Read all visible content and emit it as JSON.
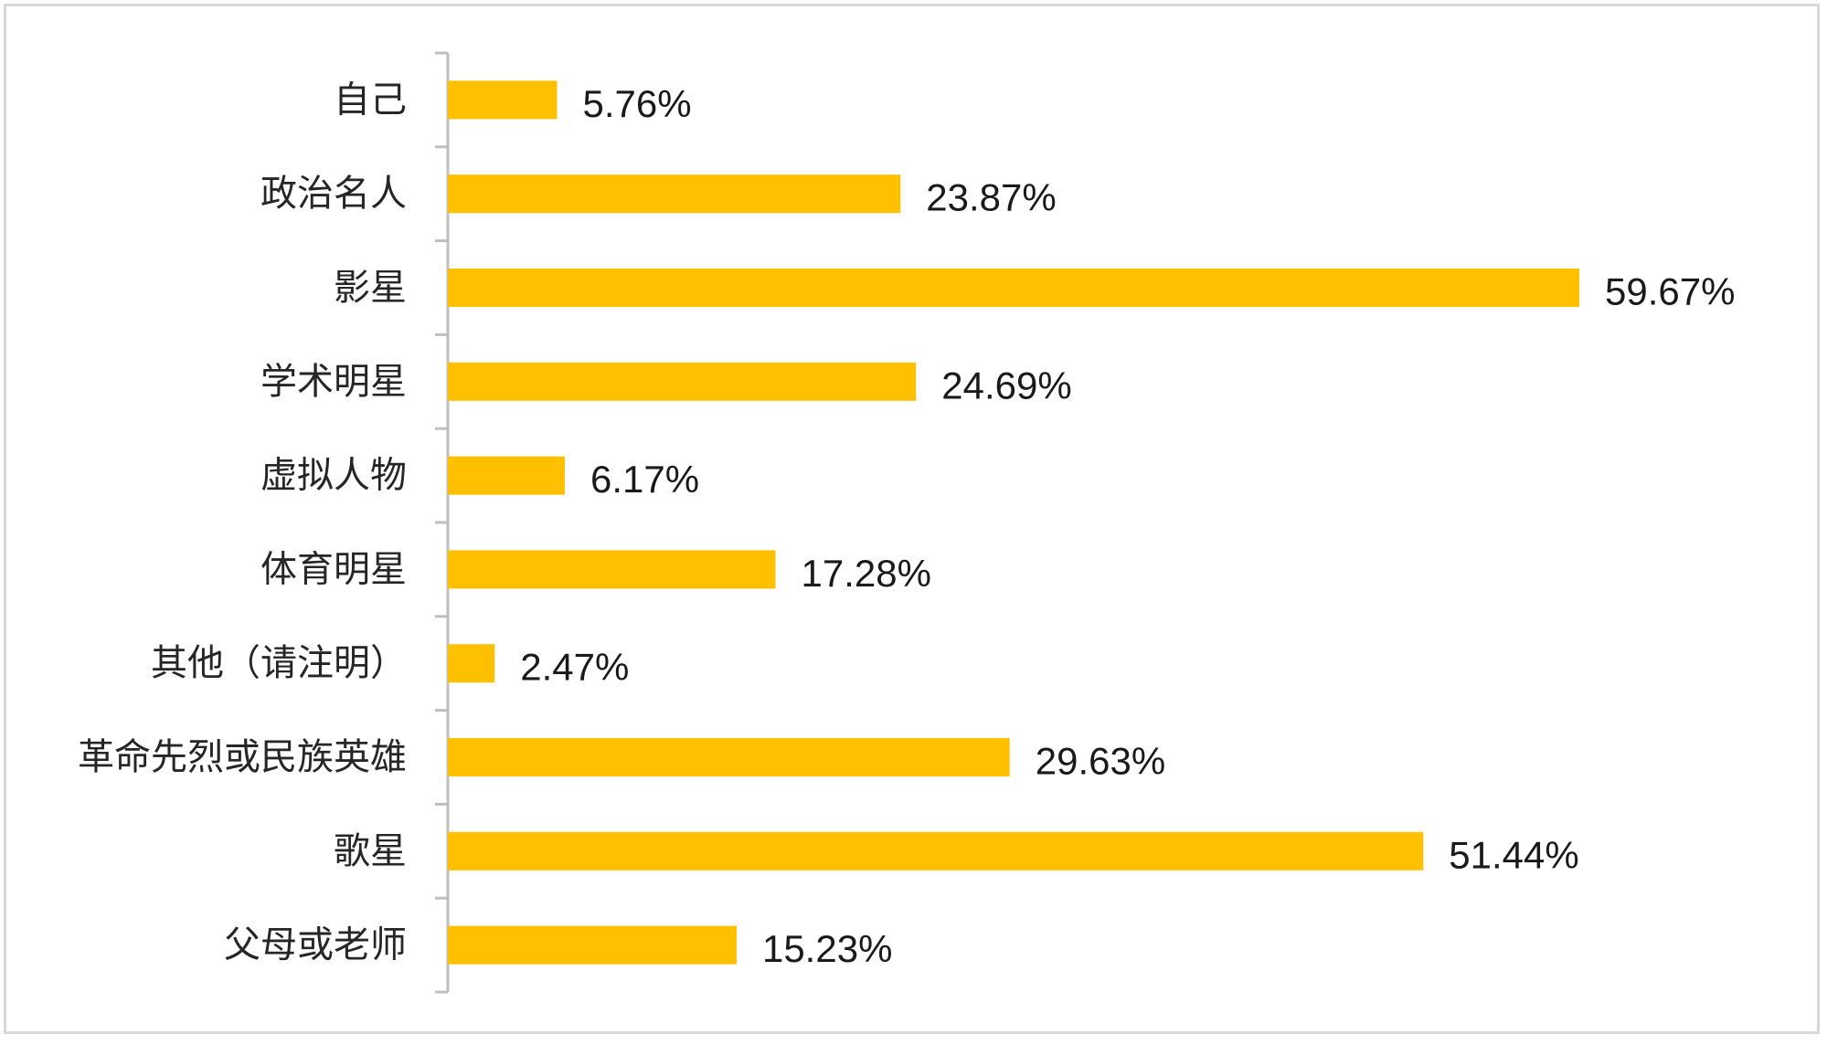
{
  "chart_data": {
    "type": "bar",
    "orientation": "horizontal",
    "categories": [
      "自己",
      "政治名人",
      "影星",
      "学术明星",
      "虚拟人物",
      "体育明星",
      "其他（请注明）",
      "革命先烈或民族英雄",
      "歌星",
      "父母或老师"
    ],
    "values": [
      5.76,
      23.87,
      59.67,
      24.69,
      6.17,
      17.28,
      2.47,
      29.63,
      51.44,
      15.23
    ],
    "value_labels": [
      "5.76%",
      "23.87%",
      "59.67%",
      "24.69%",
      "6.17%",
      "17.28%",
      "2.47%",
      "29.63%",
      "51.44%",
      "15.23%"
    ],
    "unit": "%",
    "bar_color": "#FFC000",
    "title": "",
    "xlabel": "",
    "ylabel": "",
    "grid": false,
    "legend": "none"
  }
}
